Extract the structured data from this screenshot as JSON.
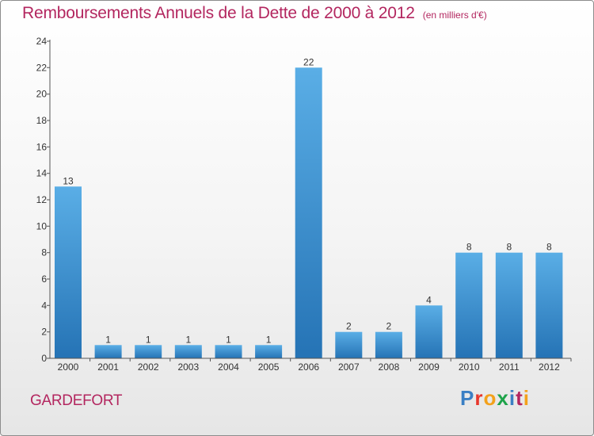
{
  "header": {
    "title": "Remboursements Annuels de la Dette de 2000 à 2012",
    "unit": "(en milliers d'€)"
  },
  "footer": {
    "commune": "GARDEFORT",
    "brand": "Proxiti",
    "brand_colors": [
      "#3a7fc4",
      "#e8372c",
      "#f3a11b",
      "#1ea34a",
      "#3a7fc4",
      "#b3265f",
      "#f3a11b"
    ]
  },
  "colors": {
    "bar_top": "#5aaee6",
    "bar_bottom": "#2573b5",
    "axis": "#555555",
    "title": "#b3265f"
  },
  "chart_data": {
    "type": "bar",
    "categories": [
      "2000",
      "2001",
      "2002",
      "2003",
      "2004",
      "2005",
      "2006",
      "2007",
      "2008",
      "2009",
      "2010",
      "2011",
      "2012"
    ],
    "values": [
      13,
      1,
      1,
      1,
      1,
      1,
      22,
      2,
      2,
      4,
      8,
      8,
      8
    ],
    "data_labels": [
      "13",
      "1",
      "1",
      "1",
      "1",
      "1",
      "22",
      "2",
      "2",
      "4",
      "8",
      "8",
      "8"
    ],
    "yticks": [
      "0",
      "2",
      "4",
      "6",
      "8",
      "10",
      "12",
      "14",
      "16",
      "18",
      "20",
      "22",
      "24"
    ],
    "ylim": [
      0,
      24
    ],
    "grid": false,
    "legend": "none"
  }
}
